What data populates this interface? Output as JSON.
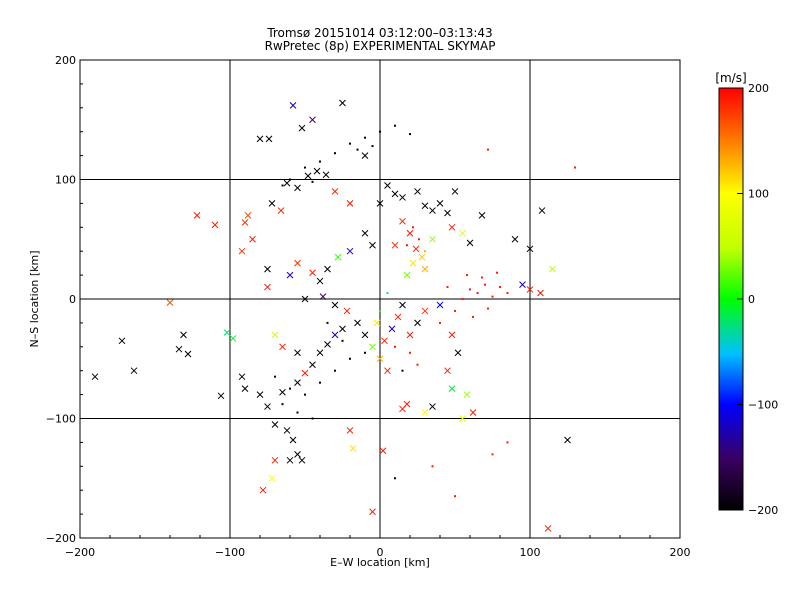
{
  "chart_data": {
    "type": "scatter",
    "title": "Tromsø 20151014 03:12:00–03:13:43",
    "subtitle": "RwPretec (8p) EXPERIMENTAL SKYMAP",
    "xlabel": "E–W location [km]",
    "ylabel": "N–S location [km]",
    "xlim": [
      -200,
      200
    ],
    "ylim": [
      -200,
      200
    ],
    "x_ticks": [
      "−200",
      "−100",
      "0",
      "100",
      "200"
    ],
    "y_ticks": [
      "−200",
      "−100",
      "0",
      "100",
      "200"
    ],
    "grid": true,
    "colorbar": {
      "label": "[m/s]",
      "range": [
        -200,
        200
      ],
      "ticks": [
        "200",
        "100",
        "0",
        "−100",
        "−200"
      ]
    },
    "marker_types": [
      "x",
      "dot"
    ],
    "points": [
      {
        "x": -190,
        "y": -65,
        "v": -200,
        "m": "x"
      },
      {
        "x": -172,
        "y": -35,
        "v": -200,
        "m": "x"
      },
      {
        "x": -164,
        "y": -60,
        "v": -200,
        "m": "x"
      },
      {
        "x": -140,
        "y": -3,
        "v": 170,
        "m": "x"
      },
      {
        "x": -134,
        "y": -42,
        "v": -200,
        "m": "x"
      },
      {
        "x": -131,
        "y": -30,
        "v": -200,
        "m": "x"
      },
      {
        "x": -128,
        "y": -46,
        "v": -200,
        "m": "x"
      },
      {
        "x": -122,
        "y": 70,
        "v": 190,
        "m": "x"
      },
      {
        "x": -110,
        "y": 62,
        "v": 190,
        "m": "x"
      },
      {
        "x": -102,
        "y": -28,
        "v": -20,
        "m": "x"
      },
      {
        "x": -98,
        "y": -33,
        "v": -10,
        "m": "x"
      },
      {
        "x": -106,
        "y": -81,
        "v": -200,
        "m": "x"
      },
      {
        "x": -92,
        "y": 40,
        "v": 180,
        "m": "x"
      },
      {
        "x": -90,
        "y": 64,
        "v": 180,
        "m": "x"
      },
      {
        "x": -88,
        "y": 70,
        "v": 170,
        "m": "x"
      },
      {
        "x": -92,
        "y": -65,
        "v": -200,
        "m": "x"
      },
      {
        "x": -90,
        "y": -75,
        "v": -200,
        "m": "x"
      },
      {
        "x": -80,
        "y": 134,
        "v": -200,
        "m": "x"
      },
      {
        "x": -74,
        "y": 134,
        "v": -200,
        "m": "x"
      },
      {
        "x": -58,
        "y": 162,
        "v": -120,
        "m": "x"
      },
      {
        "x": -52,
        "y": 143,
        "v": -200,
        "m": "x"
      },
      {
        "x": -45,
        "y": 150,
        "v": -150,
        "m": "x"
      },
      {
        "x": -25,
        "y": 164,
        "v": -200,
        "m": "x"
      },
      {
        "x": -72,
        "y": 80,
        "v": -200,
        "m": "x"
      },
      {
        "x": -66,
        "y": 74,
        "v": 190,
        "m": "x"
      },
      {
        "x": -62,
        "y": 97,
        "v": -200,
        "m": "x"
      },
      {
        "x": -55,
        "y": 93,
        "v": -200,
        "m": "x"
      },
      {
        "x": -48,
        "y": 103,
        "v": -200,
        "m": "x"
      },
      {
        "x": -42,
        "y": 107,
        "v": -200,
        "m": "x"
      },
      {
        "x": -36,
        "y": 104,
        "v": -200,
        "m": "x"
      },
      {
        "x": -30,
        "y": 90,
        "v": 190,
        "m": "x"
      },
      {
        "x": -20,
        "y": 80,
        "v": 190,
        "m": "x"
      },
      {
        "x": -10,
        "y": 120,
        "v": -200,
        "m": "x"
      },
      {
        "x": 0,
        "y": 80,
        "v": -200,
        "m": "x"
      },
      {
        "x": 5,
        "y": 95,
        "v": -200,
        "m": "x"
      },
      {
        "x": 10,
        "y": 88,
        "v": -200,
        "m": "x"
      },
      {
        "x": 15,
        "y": 85,
        "v": -200,
        "m": "x"
      },
      {
        "x": 25,
        "y": 90,
        "v": -200,
        "m": "x"
      },
      {
        "x": 30,
        "y": 78,
        "v": -200,
        "m": "x"
      },
      {
        "x": 35,
        "y": 74,
        "v": -200,
        "m": "x"
      },
      {
        "x": 40,
        "y": 80,
        "v": -200,
        "m": "x"
      },
      {
        "x": 45,
        "y": 72,
        "v": -200,
        "m": "x"
      },
      {
        "x": 48,
        "y": 60,
        "v": 190,
        "m": "x"
      },
      {
        "x": 50,
        "y": 90,
        "v": -200,
        "m": "x"
      },
      {
        "x": 55,
        "y": 55,
        "v": 80,
        "m": "x"
      },
      {
        "x": 60,
        "y": 47,
        "v": -200,
        "m": "x"
      },
      {
        "x": 68,
        "y": 70,
        "v": -200,
        "m": "x"
      },
      {
        "x": 90,
        "y": 50,
        "v": -200,
        "m": "x"
      },
      {
        "x": 100,
        "y": 42,
        "v": -200,
        "m": "x"
      },
      {
        "x": 108,
        "y": 74,
        "v": -200,
        "m": "x"
      },
      {
        "x": 115,
        "y": 25,
        "v": 50,
        "m": "x"
      },
      {
        "x": 95,
        "y": 12,
        "v": -120,
        "m": "x"
      },
      {
        "x": 100,
        "y": 8,
        "v": 190,
        "m": "x"
      },
      {
        "x": 107,
        "y": 5,
        "v": 190,
        "m": "x"
      },
      {
        "x": 20,
        "y": 55,
        "v": 190,
        "m": "x"
      },
      {
        "x": 24,
        "y": 42,
        "v": 190,
        "m": "x"
      },
      {
        "x": 28,
        "y": 35,
        "v": 120,
        "m": "x"
      },
      {
        "x": 22,
        "y": 30,
        "v": 110,
        "m": "x"
      },
      {
        "x": 18,
        "y": 20,
        "v": 30,
        "m": "x"
      },
      {
        "x": 30,
        "y": 25,
        "v": 130,
        "m": "x"
      },
      {
        "x": 35,
        "y": 50,
        "v": 40,
        "m": "x"
      },
      {
        "x": 10,
        "y": 45,
        "v": 180,
        "m": "x"
      },
      {
        "x": 15,
        "y": 65,
        "v": 190,
        "m": "x"
      },
      {
        "x": -5,
        "y": 45,
        "v": -200,
        "m": "x"
      },
      {
        "x": -10,
        "y": 55,
        "v": -200,
        "m": "x"
      },
      {
        "x": -20,
        "y": 40,
        "v": -120,
        "m": "x"
      },
      {
        "x": -28,
        "y": 35,
        "v": 10,
        "m": "x"
      },
      {
        "x": -35,
        "y": 25,
        "v": -200,
        "m": "x"
      },
      {
        "x": -40,
        "y": 15,
        "v": -200,
        "m": "x"
      },
      {
        "x": -45,
        "y": 22,
        "v": 190,
        "m": "x"
      },
      {
        "x": -55,
        "y": 30,
        "v": 180,
        "m": "x"
      },
      {
        "x": -60,
        "y": 20,
        "v": -120,
        "m": "x"
      },
      {
        "x": -75,
        "y": 10,
        "v": 190,
        "m": "x"
      },
      {
        "x": -85,
        "y": 50,
        "v": 190,
        "m": "x"
      },
      {
        "x": -75,
        "y": 25,
        "v": -200,
        "m": "x"
      },
      {
        "x": -50,
        "y": 0,
        "v": -200,
        "m": "x"
      },
      {
        "x": -38,
        "y": 2,
        "v": -150,
        "m": "x"
      },
      {
        "x": -30,
        "y": -5,
        "v": -200,
        "m": "x"
      },
      {
        "x": -22,
        "y": -10,
        "v": 190,
        "m": "x"
      },
      {
        "x": -15,
        "y": -20,
        "v": -200,
        "m": "x"
      },
      {
        "x": -10,
        "y": -30,
        "v": -200,
        "m": "x"
      },
      {
        "x": -5,
        "y": -40,
        "v": 30,
        "m": "x"
      },
      {
        "x": 0,
        "y": -50,
        "v": 130,
        "m": "x"
      },
      {
        "x": 5,
        "y": -60,
        "v": 190,
        "m": "x"
      },
      {
        "x": 3,
        "y": -35,
        "v": 190,
        "m": "x"
      },
      {
        "x": -2,
        "y": -20,
        "v": 110,
        "m": "x"
      },
      {
        "x": 8,
        "y": -25,
        "v": -120,
        "m": "x"
      },
      {
        "x": 12,
        "y": -15,
        "v": 190,
        "m": "x"
      },
      {
        "x": 15,
        "y": -5,
        "v": -200,
        "m": "x"
      },
      {
        "x": 20,
        "y": -30,
        "v": 190,
        "m": "x"
      },
      {
        "x": 25,
        "y": -20,
        "v": -200,
        "m": "x"
      },
      {
        "x": 30,
        "y": -10,
        "v": 180,
        "m": "x"
      },
      {
        "x": 40,
        "y": -5,
        "v": -100,
        "m": "x"
      },
      {
        "x": 48,
        "y": -30,
        "v": 190,
        "m": "x"
      },
      {
        "x": 52,
        "y": -45,
        "v": -200,
        "m": "x"
      },
      {
        "x": 45,
        "y": -60,
        "v": 190,
        "m": "x"
      },
      {
        "x": 48,
        "y": -75,
        "v": -10,
        "m": "x"
      },
      {
        "x": 58,
        "y": -80,
        "v": 40,
        "m": "x"
      },
      {
        "x": 62,
        "y": -95,
        "v": 190,
        "m": "x"
      },
      {
        "x": 55,
        "y": -100,
        "v": 80,
        "m": "x"
      },
      {
        "x": 35,
        "y": -90,
        "v": -200,
        "m": "x"
      },
      {
        "x": 30,
        "y": -95,
        "v": 90,
        "m": "x"
      },
      {
        "x": 18,
        "y": -88,
        "v": 190,
        "m": "x"
      },
      {
        "x": 15,
        "y": -92,
        "v": 190,
        "m": "x"
      },
      {
        "x": -20,
        "y": -110,
        "v": 190,
        "m": "x"
      },
      {
        "x": -18,
        "y": -125,
        "v": 110,
        "m": "x"
      },
      {
        "x": 2,
        "y": -127,
        "v": 190,
        "m": "x"
      },
      {
        "x": -5,
        "y": -178,
        "v": 190,
        "m": "x"
      },
      {
        "x": -78,
        "y": -160,
        "v": 190,
        "m": "x"
      },
      {
        "x": -72,
        "y": -150,
        "v": 100,
        "m": "x"
      },
      {
        "x": -70,
        "y": -135,
        "v": 190,
        "m": "x"
      },
      {
        "x": -60,
        "y": -135,
        "v": -200,
        "m": "x"
      },
      {
        "x": -55,
        "y": -130,
        "v": -200,
        "m": "x"
      },
      {
        "x": -52,
        "y": -135,
        "v": -200,
        "m": "x"
      },
      {
        "x": -58,
        "y": -118,
        "v": -200,
        "m": "x"
      },
      {
        "x": -62,
        "y": -110,
        "v": -200,
        "m": "x"
      },
      {
        "x": -70,
        "y": -105,
        "v": -200,
        "m": "x"
      },
      {
        "x": -75,
        "y": -90,
        "v": -200,
        "m": "x"
      },
      {
        "x": -80,
        "y": -80,
        "v": -200,
        "m": "x"
      },
      {
        "x": -65,
        "y": -78,
        "v": -200,
        "m": "x"
      },
      {
        "x": -55,
        "y": -70,
        "v": -200,
        "m": "x"
      },
      {
        "x": -50,
        "y": -62,
        "v": 190,
        "m": "x"
      },
      {
        "x": -45,
        "y": -55,
        "v": -200,
        "m": "x"
      },
      {
        "x": -40,
        "y": -45,
        "v": -200,
        "m": "x"
      },
      {
        "x": -35,
        "y": -38,
        "v": -200,
        "m": "x"
      },
      {
        "x": -30,
        "y": -30,
        "v": -120,
        "m": "x"
      },
      {
        "x": -25,
        "y": -25,
        "v": -200,
        "m": "x"
      },
      {
        "x": -65,
        "y": -40,
        "v": 190,
        "m": "x"
      },
      {
        "x": -70,
        "y": -30,
        "v": 60,
        "m": "x"
      },
      {
        "x": -55,
        "y": -45,
        "v": -200,
        "m": "x"
      },
      {
        "x": 125,
        "y": -118,
        "v": -200,
        "m": "x"
      },
      {
        "x": 112,
        "y": -192,
        "v": 190,
        "m": "x"
      },
      {
        "x": 130,
        "y": 110,
        "v": 190,
        "m": "dot"
      },
      {
        "x": 72,
        "y": 125,
        "v": 190,
        "m": "dot"
      },
      {
        "x": 60,
        "y": 8,
        "v": 190,
        "m": "dot"
      },
      {
        "x": 65,
        "y": 5,
        "v": 190,
        "m": "dot"
      },
      {
        "x": 70,
        "y": 12,
        "v": 190,
        "m": "dot"
      },
      {
        "x": 75,
        "y": 2,
        "v": 190,
        "m": "dot"
      },
      {
        "x": 80,
        "y": 10,
        "v": 190,
        "m": "dot"
      },
      {
        "x": 55,
        "y": 0,
        "v": 190,
        "m": "dot"
      },
      {
        "x": 50,
        "y": -10,
        "v": 190,
        "m": "dot"
      },
      {
        "x": 62,
        "y": -15,
        "v": 190,
        "m": "dot"
      },
      {
        "x": 68,
        "y": 18,
        "v": 190,
        "m": "dot"
      },
      {
        "x": 85,
        "y": 5,
        "v": 190,
        "m": "dot"
      },
      {
        "x": 45,
        "y": 10,
        "v": 190,
        "m": "dot"
      },
      {
        "x": 40,
        "y": -20,
        "v": 190,
        "m": "dot"
      },
      {
        "x": 72,
        "y": -8,
        "v": 190,
        "m": "dot"
      },
      {
        "x": 78,
        "y": 22,
        "v": 190,
        "m": "dot"
      },
      {
        "x": 58,
        "y": 20,
        "v": 190,
        "m": "dot"
      },
      {
        "x": 22,
        "y": 60,
        "v": 190,
        "m": "dot"
      },
      {
        "x": 26,
        "y": 50,
        "v": 190,
        "m": "dot"
      },
      {
        "x": 18,
        "y": 45,
        "v": 190,
        "m": "dot"
      },
      {
        "x": 30,
        "y": 40,
        "v": 130,
        "m": "dot"
      },
      {
        "x": -20,
        "y": 130,
        "v": -200,
        "m": "dot"
      },
      {
        "x": -15,
        "y": 125,
        "v": -200,
        "m": "dot"
      },
      {
        "x": -10,
        "y": 135,
        "v": -200,
        "m": "dot"
      },
      {
        "x": -5,
        "y": 128,
        "v": -200,
        "m": "dot"
      },
      {
        "x": -30,
        "y": 122,
        "v": -200,
        "m": "dot"
      },
      {
        "x": -40,
        "y": 115,
        "v": -200,
        "m": "dot"
      },
      {
        "x": -50,
        "y": 110,
        "v": -200,
        "m": "dot"
      },
      {
        "x": -60,
        "y": 100,
        "v": -200,
        "m": "dot"
      },
      {
        "x": -65,
        "y": 95,
        "v": -200,
        "m": "dot"
      },
      {
        "x": -45,
        "y": 98,
        "v": -200,
        "m": "dot"
      },
      {
        "x": 0,
        "y": 140,
        "v": -200,
        "m": "dot"
      },
      {
        "x": 10,
        "y": 145,
        "v": -200,
        "m": "dot"
      },
      {
        "x": 20,
        "y": 138,
        "v": -200,
        "m": "dot"
      },
      {
        "x": -70,
        "y": -65,
        "v": -200,
        "m": "dot"
      },
      {
        "x": -60,
        "y": -75,
        "v": -200,
        "m": "dot"
      },
      {
        "x": -50,
        "y": -80,
        "v": -200,
        "m": "dot"
      },
      {
        "x": -40,
        "y": -70,
        "v": -200,
        "m": "dot"
      },
      {
        "x": -30,
        "y": -60,
        "v": -200,
        "m": "dot"
      },
      {
        "x": -20,
        "y": -50,
        "v": -200,
        "m": "dot"
      },
      {
        "x": -10,
        "y": -45,
        "v": -200,
        "m": "dot"
      },
      {
        "x": -35,
        "y": -20,
        "v": -200,
        "m": "dot"
      },
      {
        "x": -25,
        "y": -35,
        "v": -200,
        "m": "dot"
      },
      {
        "x": -45,
        "y": -100,
        "v": -200,
        "m": "dot"
      },
      {
        "x": -55,
        "y": -95,
        "v": -200,
        "m": "dot"
      },
      {
        "x": -65,
        "y": -88,
        "v": -200,
        "m": "dot"
      },
      {
        "x": 10,
        "y": -40,
        "v": 190,
        "m": "dot"
      },
      {
        "x": 20,
        "y": -45,
        "v": 190,
        "m": "dot"
      },
      {
        "x": 25,
        "y": -55,
        "v": 190,
        "m": "dot"
      },
      {
        "x": 15,
        "y": -60,
        "v": -200,
        "m": "dot"
      },
      {
        "x": 0,
        "y": -10,
        "v": 10,
        "m": "dot"
      },
      {
        "x": 5,
        "y": 5,
        "v": -20,
        "m": "dot"
      },
      {
        "x": 85,
        "y": -120,
        "v": 190,
        "m": "dot"
      },
      {
        "x": 75,
        "y": -130,
        "v": 190,
        "m": "dot"
      },
      {
        "x": 35,
        "y": -140,
        "v": 190,
        "m": "dot"
      },
      {
        "x": 50,
        "y": -165,
        "v": 190,
        "m": "dot"
      },
      {
        "x": 10,
        "y": -150,
        "v": -200,
        "m": "dot"
      }
    ]
  }
}
